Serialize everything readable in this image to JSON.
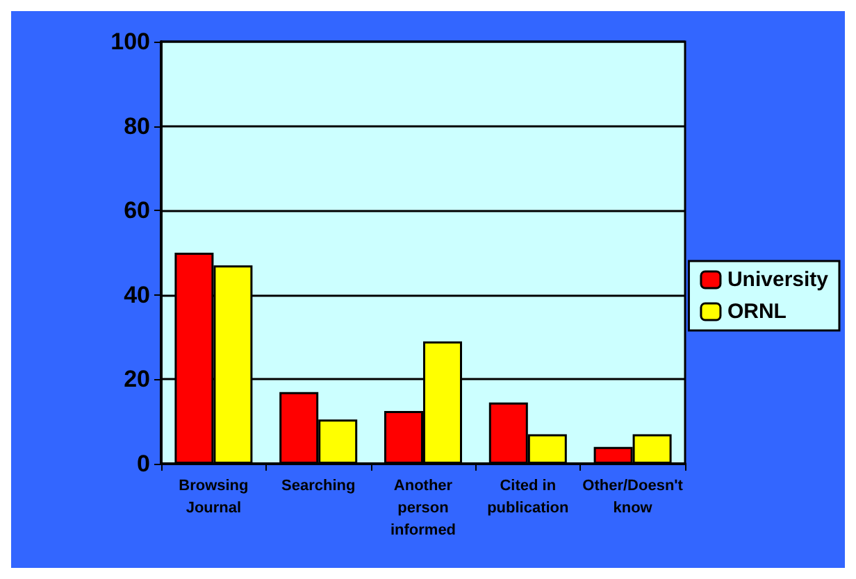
{
  "chart_data": {
    "type": "bar",
    "categories": [
      "Browsing\nJournal",
      "Searching",
      "Another\nperson\ninformed",
      "Cited in\npublication",
      "Other/Doesn't\nknow"
    ],
    "series": [
      {
        "name": "University",
        "color": "#ff0000",
        "values": [
          50,
          17,
          12.5,
          14.5,
          4
        ]
      },
      {
        "name": "ORNL",
        "color": "#ffff00",
        "values": [
          47,
          10.5,
          29,
          7,
          7
        ]
      }
    ],
    "ylim": [
      0,
      100
    ],
    "yticks": [
      0,
      20,
      40,
      60,
      80,
      100
    ],
    "grid": "y",
    "legend": "right"
  }
}
